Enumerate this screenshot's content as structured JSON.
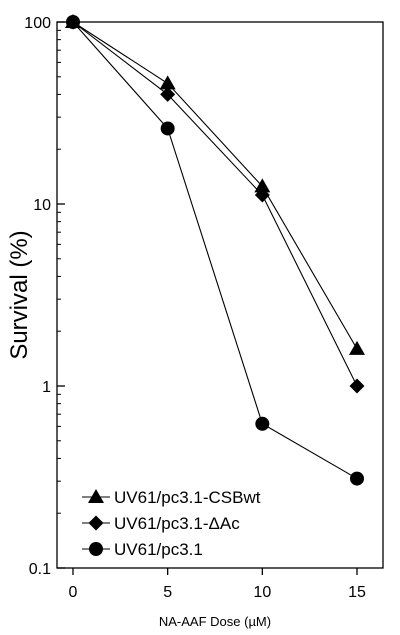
{
  "chart_data": {
    "type": "line",
    "title": "",
    "xlabel": "NA-AAF Dose (µM)",
    "ylabel": "Survival (%)",
    "x": [
      0,
      5,
      10,
      15
    ],
    "xlim": [
      0,
      15
    ],
    "ylim": [
      0.1,
      100
    ],
    "yscale": "log",
    "grid": false,
    "legend_position": "bottom-left",
    "x_ticks": [
      {
        "value": 0,
        "label": "0"
      },
      {
        "value": 5,
        "label": "5"
      },
      {
        "value": 10,
        "label": "10"
      },
      {
        "value": 15,
        "label": "15"
      }
    ],
    "y_ticks": [
      {
        "value": 100,
        "label": "100"
      },
      {
        "value": 10,
        "label": "10"
      },
      {
        "value": 1,
        "label": "1"
      },
      {
        "value": 0.1,
        "label": "0.1"
      }
    ],
    "series": [
      {
        "name": "UV61/pc3.1-CSBwt",
        "marker": "triangle",
        "values": [
          100,
          46,
          12.5,
          1.6
        ]
      },
      {
        "name": "UV61/pc3.1-ΔAc",
        "marker": "diamond",
        "values": [
          100,
          40,
          11.2,
          1.0
        ]
      },
      {
        "name": "UV61/pc3.1",
        "marker": "circle",
        "values": [
          100,
          26,
          0.62,
          0.31
        ]
      }
    ],
    "colors": {
      "line": "#000000",
      "marker": "#000000",
      "background": "#ffffff"
    }
  }
}
